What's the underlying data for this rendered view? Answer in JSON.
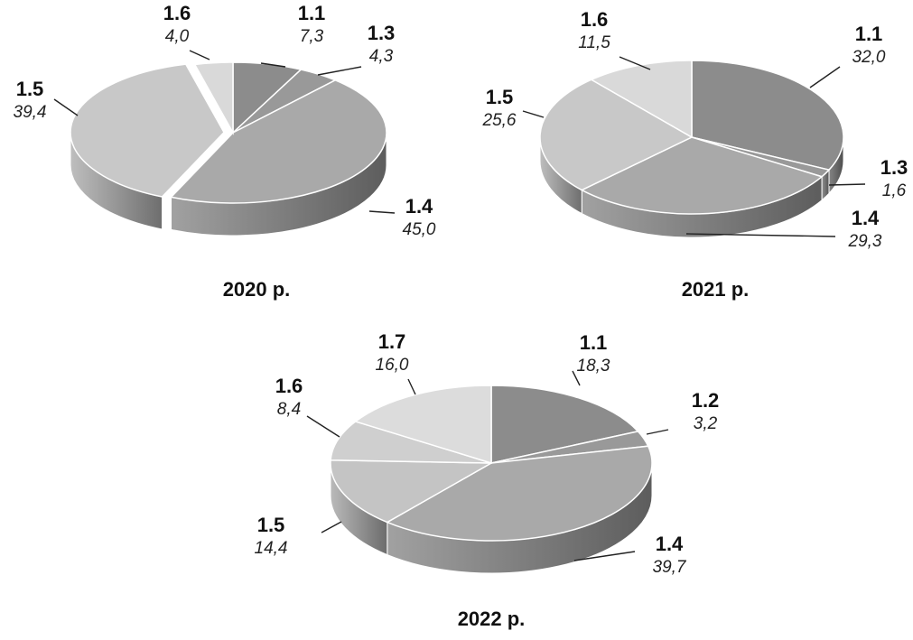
{
  "chart_data": [
    {
      "type": "pie",
      "year_label": "2020 р.",
      "slices": [
        {
          "code": "1.1",
          "value_text": "7,3",
          "value": 7.3,
          "color": "#8c8c8c"
        },
        {
          "code": "1.3",
          "value_text": "4,3",
          "value": 4.3,
          "color": "#999999"
        },
        {
          "code": "1.4",
          "value_text": "45,0",
          "value": 45.0,
          "color": "#a9a9a9"
        },
        {
          "code": "1.5",
          "value_text": "39,4",
          "value": 39.4,
          "color": "#c8c8c8"
        },
        {
          "code": "1.6",
          "value_text": "4,0",
          "value": 4.0,
          "color": "#d9d9d9"
        }
      ]
    },
    {
      "type": "pie",
      "year_label": "2021 р.",
      "slices": [
        {
          "code": "1.1",
          "value_text": "32,0",
          "value": 32.0,
          "color": "#8c8c8c"
        },
        {
          "code": "1.3",
          "value_text": "1,6",
          "value": 1.6,
          "color": "#999999"
        },
        {
          "code": "1.4",
          "value_text": "29,3",
          "value": 29.3,
          "color": "#a9a9a9"
        },
        {
          "code": "1.5",
          "value_text": "25,6",
          "value": 25.6,
          "color": "#c8c8c8"
        },
        {
          "code": "1.6",
          "value_text": "11,5",
          "value": 11.5,
          "color": "#d9d9d9"
        }
      ]
    },
    {
      "type": "pie",
      "year_label": "2022 р.",
      "slices": [
        {
          "code": "1.1",
          "value_text": "18,3",
          "value": 18.3,
          "color": "#8c8c8c"
        },
        {
          "code": "1.2",
          "value_text": "3,2",
          "value": 3.2,
          "color": "#999999"
        },
        {
          "code": "1.4",
          "value_text": "39,7",
          "value": 39.7,
          "color": "#a9a9a9"
        },
        {
          "code": "1.5",
          "value_text": "14,4",
          "value": 14.4,
          "color": "#c4c4c4"
        },
        {
          "code": "1.6",
          "value_text": "8,4",
          "value": 8.4,
          "color": "#cfcfcf"
        },
        {
          "code": "1.7",
          "value_text": "16,0",
          "value": 16.0,
          "color": "#dcdcdc"
        }
      ]
    }
  ]
}
